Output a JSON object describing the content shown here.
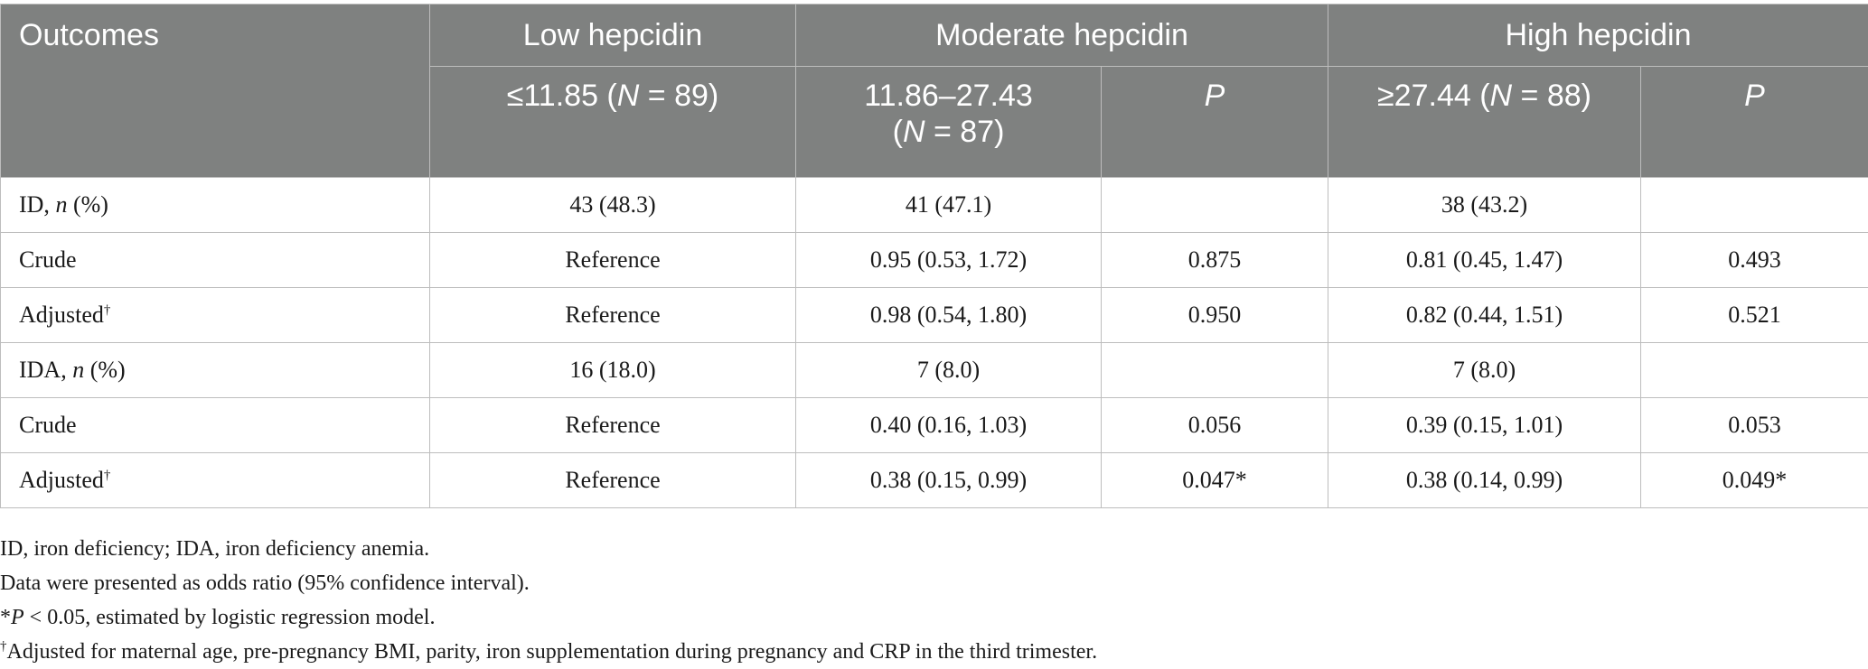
{
  "table": {
    "header": {
      "outcomes": "Outcomes",
      "low_group": "Low hepcidin",
      "moderate_group": "Moderate hepcidin",
      "high_group": "High hepcidin",
      "low_range": "≤11.85 (",
      "low_n_symbol": "N",
      "low_n": " = 89)",
      "mod_range": "11.86–27.43",
      "mod_n_symbol": "N",
      "mod_n": " = 87)",
      "mod_p": "P",
      "high_range": "≥27.44 (",
      "high_n_symbol": "N",
      "high_n": " = 88)",
      "high_p": "P"
    },
    "rows": [
      {
        "label": "ID, ",
        "label_n": "n",
        "label_suffix": " (%)",
        "low": "43 (48.3)",
        "mod": "41 (47.1)",
        "mod_p": "",
        "high": "38 (43.2)",
        "high_p": ""
      },
      {
        "label": "Crude",
        "low": "Reference",
        "mod": "0.95 (0.53, 1.72)",
        "mod_p": "0.875",
        "high": "0.81 (0.45, 1.47)",
        "high_p": "0.493"
      },
      {
        "label": "Adjusted",
        "sup": "†",
        "low": "Reference",
        "mod": "0.98 (0.54, 1.80)",
        "mod_p": "0.950",
        "high": "0.82 (0.44, 1.51)",
        "high_p": "0.521"
      },
      {
        "label": "IDA, ",
        "label_n": "n",
        "label_suffix": " (%)",
        "low": "16 (18.0)",
        "mod": "7 (8.0)",
        "mod_p": "",
        "high": "7 (8.0)",
        "high_p": ""
      },
      {
        "label": "Crude",
        "low": "Reference",
        "mod": "0.40 (0.16, 1.03)",
        "mod_p": "0.056",
        "high": "0.39 (0.15, 1.01)",
        "high_p": "0.053"
      },
      {
        "label": "Adjusted",
        "sup": "†",
        "low": "Reference",
        "mod": "0.38 (0.15, 0.99)",
        "mod_p": "0.047*",
        "high": "0.38 (0.14, 0.99)",
        "high_p": "0.049*"
      }
    ]
  },
  "notes": {
    "abbrev": "ID, iron deficiency; IDA, iron deficiency anemia.",
    "data_presented": "Data were presented as odds ratio (95% confidence interval).",
    "sig_star": "*",
    "sig_p": "P",
    "sig_text": " < 0.05, estimated by logistic regression model.",
    "adj_sup": "†",
    "adj_text": "Adjusted for maternal age, pre-pregnancy BMI, parity, iron supplementation during pregnancy and CRP in the third trimester."
  }
}
